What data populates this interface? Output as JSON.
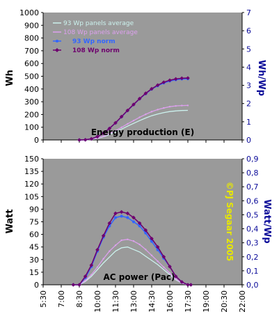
{
  "colors": {
    "plot_bg": "#9a9a9a",
    "series_93_avg": "#ccf2ee",
    "series_108_avg": "#dda0ee",
    "series_93_norm": "#3366ff",
    "series_108_norm": "#6e006e",
    "right_axis": "#0a0a99",
    "copyright": "#e8e800"
  },
  "x_axis": {
    "tick_labels": [
      "5:30",
      "7:00",
      "8:30",
      "10:00",
      "11:30",
      "13:00",
      "14:30",
      "16:00",
      "17:30",
      "19:00",
      "20:30",
      "22:00"
    ]
  },
  "copyright": "©PJ Segaar 2005",
  "chart_data": [
    {
      "type": "line",
      "title": "Energy production (E)",
      "ylabel": "Wh",
      "ylabel_right": "Wh/Wp",
      "ylim": [
        0,
        1000
      ],
      "yticks": [
        0,
        100,
        200,
        300,
        400,
        500,
        600,
        700,
        800,
        900,
        1000
      ],
      "ylim_right": [
        0,
        7
      ],
      "yticks_right": [
        0,
        1,
        2,
        3,
        4,
        5,
        6,
        7
      ],
      "xlim": [
        "5:30",
        "22:00"
      ],
      "grid": false,
      "legend_position": "top-left",
      "x": [
        "8:30",
        "9:00",
        "9:30",
        "10:00",
        "10:30",
        "11:00",
        "11:30",
        "12:00",
        "12:30",
        "13:00",
        "13:30",
        "14:00",
        "14:30",
        "15:00",
        "15:30",
        "16:00",
        "16:30",
        "17:00",
        "17:30"
      ],
      "series": [
        {
          "name": "93 Wp panels average",
          "axis": "left",
          "values": [
            0,
            1,
            4,
            12,
            25,
            42,
            62,
            85,
            108,
            130,
            152,
            172,
            190,
            204,
            215,
            223,
            228,
            231,
            232
          ]
        },
        {
          "name": "108 Wp panels average",
          "axis": "left",
          "values": [
            0,
            1,
            5,
            14,
            29,
            49,
            72,
            99,
            126,
            152,
            178,
            201,
            222,
            238,
            251,
            261,
            267,
            270,
            271
          ]
        },
        {
          "name": "93 Wp norm",
          "axis": "right",
          "values": [
            0,
            0.01,
            0.06,
            0.18,
            0.37,
            0.63,
            0.93,
            1.27,
            1.61,
            1.94,
            2.26,
            2.54,
            2.79,
            2.98,
            3.13,
            3.24,
            3.31,
            3.35,
            3.36
          ]
        },
        {
          "name": "108 Wp norm",
          "axis": "right",
          "values": [
            0,
            0.01,
            0.06,
            0.18,
            0.37,
            0.63,
            0.94,
            1.28,
            1.62,
            1.95,
            2.27,
            2.56,
            2.81,
            3.01,
            3.17,
            3.28,
            3.35,
            3.39,
            3.4
          ]
        }
      ]
    },
    {
      "type": "line",
      "title": "AC power (Pac)",
      "ylabel": "Watt",
      "ylabel_right": "Watt/Wp",
      "ylim": [
        0,
        150
      ],
      "yticks": [
        0,
        15,
        30,
        45,
        60,
        75,
        90,
        105,
        120,
        135,
        150
      ],
      "ylim_right": [
        0,
        0.9
      ],
      "yticks_right": [
        "0,0",
        "0,1",
        "0,2",
        "0,3",
        "0,4",
        "0,5",
        "0,6",
        "0,7",
        "0,8",
        "0,9"
      ],
      "xlim": [
        "5:30",
        "22:00"
      ],
      "grid": false,
      "x": [
        "8:00",
        "8:30",
        "9:00",
        "9:30",
        "10:00",
        "10:30",
        "11:00",
        "11:30",
        "12:00",
        "12:30",
        "13:00",
        "13:30",
        "14:00",
        "14:30",
        "15:00",
        "15:30",
        "16:00",
        "16:30",
        "17:00",
        "17:30",
        "17:45"
      ],
      "series": [
        {
          "name": "93 Wp panels average",
          "axis": "left",
          "values": [
            0,
            0,
            4,
            10,
            18,
            26,
            33,
            40,
            44,
            45,
            42,
            39,
            34,
            29,
            24,
            18,
            12,
            6,
            2,
            0,
            0
          ]
        },
        {
          "name": "108 Wp panels average",
          "axis": "left",
          "values": [
            0,
            0,
            5,
            12,
            21,
            31,
            40,
            47,
            53,
            54,
            52,
            48,
            42,
            35,
            28,
            21,
            14,
            7,
            2,
            0,
            0
          ]
        },
        {
          "name": "93 Wp norm",
          "axis": "right",
          "values": [
            0,
            0,
            0.05,
            0.13,
            0.24,
            0.34,
            0.42,
            0.48,
            0.49,
            0.48,
            0.45,
            0.42,
            0.37,
            0.31,
            0.25,
            0.19,
            0.13,
            0.06,
            0.02,
            0,
            0
          ]
        },
        {
          "name": "108 Wp norm",
          "axis": "right",
          "values": [
            0,
            0,
            0.06,
            0.14,
            0.25,
            0.35,
            0.44,
            0.51,
            0.52,
            0.51,
            0.48,
            0.44,
            0.39,
            0.33,
            0.27,
            0.2,
            0.13,
            0.06,
            0.02,
            0,
            0
          ]
        }
      ]
    }
  ]
}
